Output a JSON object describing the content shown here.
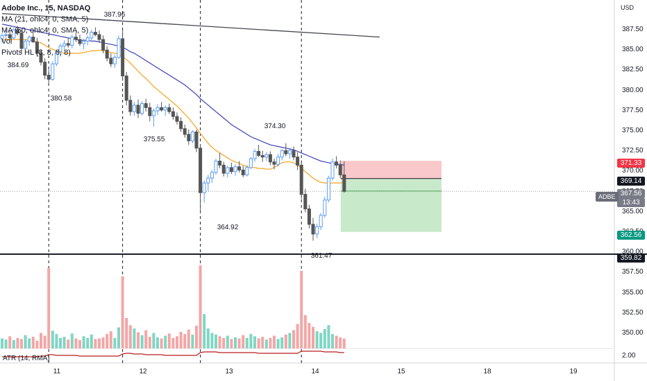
{
  "legend": {
    "title": "Adobe Inc., 15, NASDAQ",
    "ma21": "MA (21, ohlc4, 0, SMA, 5)",
    "ma50": "MA (50, ohlc4, 0, SMA, 5)",
    "vol": "Vol",
    "pivots": "Pivots HL (8, 8, 8, 8)"
  },
  "atr_label": "ATR (14, RMA)",
  "axis": {
    "unit": "USD",
    "price_ticks": [
      "387.50",
      "385.00",
      "382.50",
      "380.00",
      "377.50",
      "375.00",
      "372.50",
      "370.00",
      "367.50",
      "365.00",
      "362.50",
      "360.00",
      "357.50",
      "355.00",
      "352.50",
      "350.00",
      "2.00"
    ],
    "date_ticks": [
      "11",
      "12",
      "13",
      "14",
      "15",
      "18",
      "19"
    ]
  },
  "tags": {
    "target": "371.33",
    "entry": "369.14",
    "last_price": "367.56",
    "countdown": "13:43",
    "stop": "362.56",
    "line": "359.82",
    "symbol": "ADBE"
  },
  "pivots": [
    "387.96",
    "384.69",
    "380.58",
    "375.55",
    "374.30",
    "364.92",
    "361.47"
  ],
  "colors": {
    "up": "#5b9cf6",
    "down": "#555555",
    "ma21": "#f7a21b",
    "ma50": "#3d3dba",
    "vol_up": "#7fd6c3",
    "vol_down": "#f3a6a6",
    "atr": "#b71c1c",
    "target_zone": "#f9c8cb",
    "stop_zone": "#c9e9cb"
  },
  "chart_data": {
    "type": "candlestick",
    "candles": [
      [
        386.4,
        387.1,
        385.9,
        386.8
      ],
      [
        386.8,
        387.6,
        386.5,
        386.9
      ],
      [
        386.9,
        387.3,
        386.2,
        386.5
      ],
      [
        386.5,
        387.8,
        386.3,
        387.5
      ],
      [
        387.5,
        387.96,
        386.8,
        387.1
      ],
      [
        387.1,
        387.4,
        384.69,
        385.2
      ],
      [
        385.2,
        386.3,
        384.9,
        386.1
      ],
      [
        386.1,
        386.8,
        385.5,
        386.6
      ],
      [
        386.6,
        387.2,
        385.9,
        386.0
      ],
      [
        386.0,
        386.5,
        384.2,
        384.6
      ],
      [
        384.6,
        385.1,
        383.1,
        383.5
      ],
      [
        383.5,
        384.0,
        381.4,
        381.9
      ],
      [
        381.9,
        382.6,
        380.58,
        381.4
      ],
      [
        381.4,
        383.6,
        381.2,
        383.3
      ],
      [
        383.3,
        385.0,
        383.0,
        384.8
      ],
      [
        384.8,
        385.8,
        384.2,
        385.5
      ],
      [
        385.5,
        386.2,
        385.0,
        385.8
      ],
      [
        385.8,
        386.5,
        385.3,
        385.6
      ],
      [
        385.6,
        386.9,
        385.2,
        386.6
      ],
      [
        386.6,
        387.2,
        386.0,
        386.3
      ],
      [
        386.3,
        386.9,
        385.5,
        385.8
      ],
      [
        385.8,
        386.4,
        385.1,
        386.1
      ],
      [
        386.1,
        386.8,
        385.6,
        386.5
      ],
      [
        386.5,
        387.5,
        386.1,
        387.2
      ],
      [
        387.2,
        387.8,
        386.7,
        386.9
      ],
      [
        386.9,
        387.4,
        385.9,
        386.3
      ],
      [
        386.3,
        386.8,
        384.6,
        385.0
      ],
      [
        385.0,
        385.5,
        383.6,
        384.0
      ],
      [
        384.0,
        384.6,
        382.9,
        383.3
      ],
      [
        383.3,
        384.4,
        382.8,
        384.1
      ],
      [
        384.1,
        386.8,
        383.9,
        386.4
      ],
      [
        386.4,
        387.4,
        381.2,
        381.8
      ],
      [
        381.8,
        382.3,
        378.2,
        378.8
      ],
      [
        378.8,
        379.4,
        376.9,
        377.4
      ],
      [
        377.4,
        378.6,
        376.9,
        378.2
      ],
      [
        378.2,
        378.9,
        376.6,
        377.2
      ],
      [
        377.2,
        378.7,
        376.9,
        378.4
      ],
      [
        378.4,
        379.0,
        377.4,
        377.9
      ],
      [
        377.9,
        378.5,
        376.2,
        376.9
      ],
      [
        376.9,
        377.8,
        375.55,
        377.5
      ],
      [
        377.5,
        378.3,
        377.0,
        377.9
      ],
      [
        377.9,
        378.6,
        377.4,
        377.6
      ],
      [
        377.6,
        378.2,
        376.9,
        377.9
      ],
      [
        377.9,
        378.4,
        377.1,
        377.4
      ],
      [
        377.4,
        377.9,
        376.4,
        376.8
      ],
      [
        376.8,
        377.3,
        375.8,
        376.2
      ],
      [
        376.2,
        376.7,
        374.9,
        375.3
      ],
      [
        375.3,
        375.8,
        374.2,
        374.6
      ],
      [
        374.6,
        375.2,
        373.3,
        373.8
      ],
      [
        373.8,
        375.1,
        373.5,
        374.9
      ],
      [
        374.9,
        375.2,
        372.4,
        372.9
      ],
      [
        372.9,
        373.4,
        364.92,
        367.4
      ],
      [
        367.4,
        368.9,
        366.2,
        368.6
      ],
      [
        368.6,
        369.6,
        367.6,
        369.2
      ],
      [
        369.2,
        370.2,
        368.6,
        369.9
      ],
      [
        369.9,
        371.6,
        369.6,
        371.3
      ],
      [
        371.3,
        372.3,
        370.4,
        370.8
      ],
      [
        370.8,
        371.2,
        369.4,
        369.8
      ],
      [
        369.8,
        370.7,
        369.3,
        370.5
      ],
      [
        370.5,
        371.1,
        369.7,
        370.0
      ],
      [
        370.0,
        370.9,
        369.5,
        370.6
      ],
      [
        370.6,
        371.3,
        369.9,
        370.2
      ],
      [
        370.2,
        370.7,
        369.3,
        369.6
      ],
      [
        369.6,
        370.8,
        369.4,
        370.5
      ],
      [
        370.5,
        371.8,
        370.3,
        371.6
      ],
      [
        371.6,
        372.8,
        371.2,
        372.5
      ],
      [
        372.5,
        373.3,
        371.8,
        372.0
      ],
      [
        372.0,
        372.6,
        371.2,
        371.8
      ],
      [
        371.8,
        372.4,
        371.3,
        372.1
      ],
      [
        372.1,
        372.5,
        370.8,
        371.2
      ],
      [
        371.2,
        371.6,
        370.3,
        370.9
      ],
      [
        370.9,
        372.2,
        370.6,
        371.8
      ],
      [
        371.8,
        372.8,
        371.4,
        372.6
      ],
      [
        372.6,
        373.5,
        371.9,
        372.2
      ],
      [
        372.2,
        372.9,
        371.6,
        372.6
      ],
      [
        372.6,
        373.1,
        371.4,
        371.8
      ],
      [
        371.8,
        372.4,
        370.2,
        370.8
      ],
      [
        370.8,
        371.4,
        366.6,
        367.2
      ],
      [
        367.2,
        367.9,
        365.0,
        365.4
      ],
      [
        365.4,
        365.9,
        363.0,
        363.5
      ],
      [
        363.5,
        364.3,
        361.47,
        362.3
      ],
      [
        362.3,
        363.6,
        361.8,
        363.2
      ],
      [
        363.2,
        364.9,
        362.8,
        364.6
      ],
      [
        364.6,
        366.9,
        364.3,
        366.5
      ],
      [
        366.5,
        369.5,
        366.2,
        369.2
      ],
      [
        369.2,
        371.6,
        368.9,
        371.2
      ],
      [
        371.2,
        371.9,
        370.4,
        370.8
      ],
      [
        370.8,
        371.4,
        369.2,
        369.6
      ],
      [
        369.6,
        371.3,
        367.4,
        367.56
      ]
    ],
    "volume": [
      1.8,
      1.6,
      2.2,
      1.5,
      1.9,
      1.7,
      2.4,
      1.8,
      2.1,
      1.4,
      2.8,
      2.3,
      14.5,
      3.2,
      2.6,
      1.9,
      2.1,
      1.6,
      2.7,
      1.8,
      1.5,
      2.2,
      1.9,
      2.5,
      1.7,
      1.8,
      2.0,
      2.6,
      3.1,
      1.9,
      3.8,
      13.0,
      5.5,
      4.2,
      3.6,
      2.9,
      2.4,
      3.3,
      2.1,
      2.8,
      2.0,
      1.8,
      2.3,
      2.7,
      1.9,
      2.2,
      3.0,
      2.6,
      3.4,
      2.5,
      4.1,
      15.0,
      6.2,
      3.6,
      2.8,
      2.5,
      2.2,
      1.9,
      2.3,
      1.7,
      2.0,
      1.8,
      2.4,
      1.9,
      2.6,
      2.2,
      1.8,
      2.1,
      1.6,
      1.9,
      2.3,
      1.7,
      2.0,
      2.5,
      2.8,
      3.3,
      4.4,
      14.0,
      6.0,
      4.6,
      3.9,
      3.1,
      2.8,
      3.5,
      4.2,
      2.6,
      2.3,
      2.0,
      1.8
    ],
    "ma21": [
      386.2,
      386.3,
      386.3,
      386.3,
      386.3,
      386.3,
      386.3,
      386.2,
      386.1,
      386.0,
      385.9,
      385.6,
      385.3,
      385.1,
      384.9,
      384.7,
      384.6,
      384.6,
      384.6,
      384.6,
      384.6,
      384.7,
      384.8,
      384.9,
      384.9,
      385.0,
      384.9,
      384.8,
      384.7,
      384.6,
      384.5,
      384.2,
      383.8,
      383.4,
      382.9,
      382.4,
      381.9,
      381.5,
      381.0,
      380.5,
      380.1,
      379.7,
      379.3,
      378.9,
      378.5,
      378.1,
      377.6,
      377.1,
      376.6,
      376.0,
      375.4,
      374.7,
      374.1,
      373.5,
      373.0,
      372.6,
      372.3,
      372.0,
      371.7,
      371.4,
      371.2,
      371.0,
      370.8,
      370.6,
      370.5,
      370.5,
      370.4,
      370.4,
      370.3,
      370.3,
      370.5,
      370.8,
      371.1,
      371.2,
      371.2,
      371.1,
      370.8,
      370.4,
      370.0,
      369.6,
      369.2,
      368.9,
      368.7,
      368.6,
      368.6,
      368.6,
      368.6,
      368.6,
      368.7
    ],
    "ma50": [
      388.2,
      388.1,
      388.0,
      387.9,
      387.8,
      387.7,
      387.6,
      387.5,
      387.4,
      387.3,
      387.2,
      387.1,
      387.0,
      386.9,
      386.8,
      386.7,
      386.6,
      386.5,
      386.4,
      386.3,
      386.2,
      386.2,
      386.2,
      386.1,
      386.1,
      386.0,
      385.9,
      385.8,
      385.7,
      385.6,
      385.5,
      385.3,
      385.1,
      384.8,
      384.6,
      384.3,
      384.0,
      383.7,
      383.4,
      383.1,
      382.8,
      382.5,
      382.2,
      381.9,
      381.6,
      381.3,
      381.0,
      380.7,
      380.3,
      379.9,
      379.5,
      379.0,
      378.6,
      378.2,
      377.8,
      377.4,
      377.0,
      376.6,
      376.2,
      375.8,
      375.5,
      375.2,
      374.9,
      374.6,
      374.3,
      374.1,
      373.9,
      373.7,
      373.5,
      373.3,
      373.2,
      373.1,
      373.0,
      372.9,
      372.8,
      372.7,
      372.5,
      372.3,
      372.1,
      371.9,
      371.7,
      371.5,
      371.3,
      371.2,
      371.1,
      371.0,
      370.9,
      370.9,
      370.8
    ],
    "atr": [
      2.0,
      2.0,
      2.0,
      2.0,
      2.0,
      2.0,
      2.0,
      2.0,
      2.0,
      2.0,
      2.1,
      2.1,
      2.3,
      2.3,
      2.2,
      2.2,
      2.2,
      2.2,
      2.2,
      2.2,
      2.1,
      2.1,
      2.1,
      2.1,
      2.1,
      2.1,
      2.1,
      2.1,
      2.1,
      2.1,
      2.1,
      2.4,
      2.5,
      2.5,
      2.4,
      2.4,
      2.4,
      2.3,
      2.3,
      2.3,
      2.3,
      2.3,
      2.2,
      2.2,
      2.2,
      2.2,
      2.2,
      2.2,
      2.2,
      2.2,
      2.2,
      2.6,
      2.7,
      2.7,
      2.7,
      2.7,
      2.6,
      2.6,
      2.6,
      2.6,
      2.6,
      2.6,
      2.6,
      2.6,
      2.6,
      2.6,
      2.5,
      2.5,
      2.5,
      2.5,
      2.5,
      2.5,
      2.5,
      2.5,
      2.5,
      2.5,
      2.5,
      2.8,
      2.8,
      2.8,
      2.8,
      2.8,
      2.8,
      2.7,
      2.7,
      2.7,
      2.7,
      2.6,
      2.6
    ],
    "trendline": [
      [
        0,
        389.5
      ],
      [
        90,
        386.6
      ]
    ],
    "position": {
      "target": 371.33,
      "entry": 369.14,
      "stop": 362.56
    },
    "horizontal_line": 359.82,
    "last_price": 367.56,
    "session_starts": [
      12,
      31,
      51,
      77
    ]
  }
}
